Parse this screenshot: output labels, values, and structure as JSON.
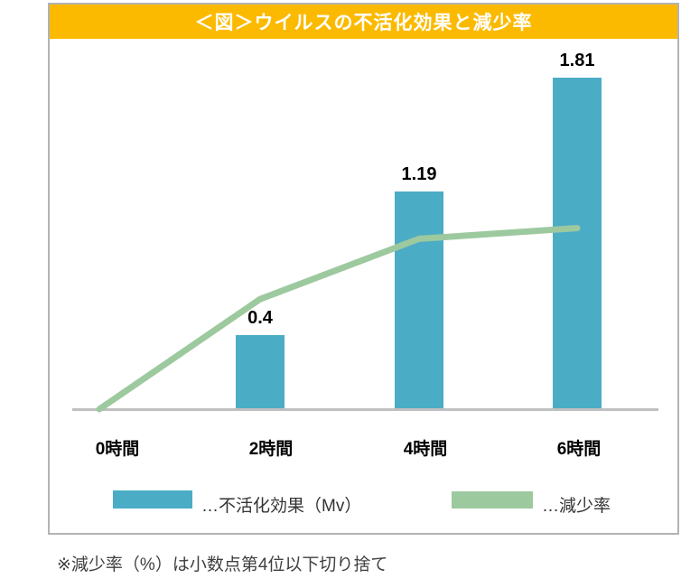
{
  "banner": {
    "title": "＜図＞ウイルスの不活化効果と減少率",
    "bg_color": "#FBBA00",
    "text_color": "#FFFFFF"
  },
  "chart_data": {
    "type": "bar",
    "subtype": "bar+line combo",
    "title": "＜図＞ウイルスの不活化効果と減少率",
    "categories": [
      "0時間",
      "2時間",
      "4時間",
      "6時間"
    ],
    "series": [
      {
        "name": "不活化効果（Mv）",
        "type": "bar",
        "color": "#4BACC6",
        "values": [
          null,
          0.4,
          1.19,
          1.81
        ],
        "data_labels": [
          "",
          "0.4",
          "1.19",
          "1.81"
        ]
      },
      {
        "name": "減少率",
        "type": "line",
        "color": "#9DC99F",
        "values_note": "line has no numeric labels or axis in the figure; heights estimated as fraction of plot height",
        "relative_heights": [
          0,
          0.31,
          0.48,
          0.51
        ]
      }
    ],
    "xlabel": "",
    "ylabel": "",
    "ylim": [
      0,
      2.0
    ],
    "gridlines": false,
    "y_axis_visible": false,
    "legend_position": "bottom",
    "legend": [
      {
        "label": "…不活化効果（Mv）",
        "color": "#4BACC6",
        "shape": "rect"
      },
      {
        "label": "…減少率",
        "color": "#9DC99F",
        "shape": "rect"
      }
    ]
  },
  "footnote": {
    "text": "※減少率（%）は小数点第4位以下切り捨て"
  },
  "colors": {
    "panel_border": "#B3B3B3",
    "axis_line": "#C0C0C0",
    "bar": "#4BACC6",
    "line": "#9DC99F",
    "banner_bg": "#FBBA00",
    "banner_text": "#FFFFFF"
  }
}
